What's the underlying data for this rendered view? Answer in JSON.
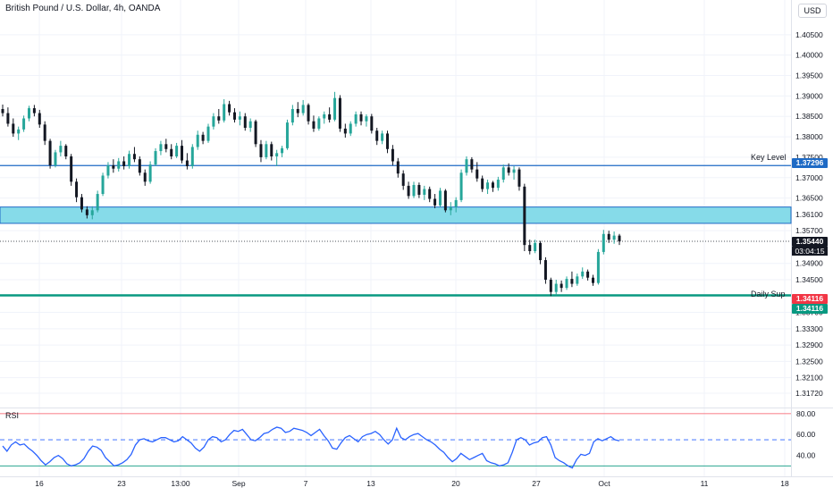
{
  "header": {
    "title": "British Pound / U.S. Dollar, 4h, OANDA",
    "currency_button": "USD"
  },
  "levels": {
    "key_level": {
      "label": "Key Level",
      "value": 1.37296,
      "tag": "1.37296",
      "color": "#1e6ac5"
    },
    "daily_sup": {
      "label": "Daily Sup",
      "value": 1.34116,
      "tag": "1.34116",
      "color": "#089981",
      "alert_color": "#f23645"
    },
    "current_price": {
      "value": 1.3544,
      "tag": "1.35440",
      "countdown": "03:04:15"
    },
    "zone": {
      "top": 1.3628,
      "bottom": 1.3588,
      "color": "#86dbe9",
      "border_color": "#1e6ac5"
    }
  },
  "rsi_panel": {
    "label": "RSI",
    "upper": 80,
    "middle": 55,
    "lower": 30,
    "line_color": "#2962ff"
  },
  "chart_data": [
    {
      "type": "candlestick",
      "title": "British Pound / U.S. Dollar, 4h, OANDA",
      "ylim": [
        1.3137,
        1.4135
      ],
      "y_ticks": [
        "1.40500",
        "1.40000",
        "1.39500",
        "1.39000",
        "1.38500",
        "1.38000",
        "1.37500",
        "1.37000",
        "1.36500",
        "1.36100",
        "1.35700",
        "1.34900",
        "1.34500",
        "1.33700",
        "1.33300",
        "1.32900",
        "1.32500",
        "1.32100",
        "1.31720"
      ],
      "x_ticks": [
        "16",
        "23",
        "13:00",
        "Sep",
        "7",
        "13",
        "20",
        "27",
        "Oct",
        "11",
        "18"
      ],
      "grid": true,
      "candles": [
        {
          "o": 1.3868,
          "h": 1.3879,
          "l": 1.385,
          "c": 1.3858
        },
        {
          "o": 1.3858,
          "h": 1.3872,
          "l": 1.3825,
          "c": 1.3832
        },
        {
          "o": 1.3832,
          "h": 1.3845,
          "l": 1.38,
          "c": 1.3808
        },
        {
          "o": 1.3808,
          "h": 1.3825,
          "l": 1.3792,
          "c": 1.3818
        },
        {
          "o": 1.3818,
          "h": 1.3852,
          "l": 1.3812,
          "c": 1.3845
        },
        {
          "o": 1.3845,
          "h": 1.3876,
          "l": 1.3838,
          "c": 1.387
        },
        {
          "o": 1.387,
          "h": 1.3878,
          "l": 1.385,
          "c": 1.3858
        },
        {
          "o": 1.3858,
          "h": 1.3866,
          "l": 1.3822,
          "c": 1.383
        },
        {
          "o": 1.383,
          "h": 1.3838,
          "l": 1.378,
          "c": 1.379
        },
        {
          "o": 1.379,
          "h": 1.3795,
          "l": 1.3722,
          "c": 1.373
        },
        {
          "o": 1.373,
          "h": 1.3768,
          "l": 1.3725,
          "c": 1.3762
        },
        {
          "o": 1.3762,
          "h": 1.379,
          "l": 1.3752,
          "c": 1.3778
        },
        {
          "o": 1.3778,
          "h": 1.3782,
          "l": 1.3745,
          "c": 1.3752
        },
        {
          "o": 1.3752,
          "h": 1.3758,
          "l": 1.368,
          "c": 1.369
        },
        {
          "o": 1.369,
          "h": 1.3698,
          "l": 1.364,
          "c": 1.3652
        },
        {
          "o": 1.3652,
          "h": 1.366,
          "l": 1.3615,
          "c": 1.3622
        },
        {
          "o": 1.3622,
          "h": 1.363,
          "l": 1.36,
          "c": 1.3608
        },
        {
          "o": 1.3608,
          "h": 1.363,
          "l": 1.3598,
          "c": 1.362
        },
        {
          "o": 1.362,
          "h": 1.3668,
          "l": 1.3615,
          "c": 1.366
        },
        {
          "o": 1.366,
          "h": 1.3712,
          "l": 1.3655,
          "c": 1.3705
        },
        {
          "o": 1.3705,
          "h": 1.3738,
          "l": 1.3698,
          "c": 1.373
        },
        {
          "o": 1.373,
          "h": 1.3745,
          "l": 1.3712,
          "c": 1.3722
        },
        {
          "o": 1.3722,
          "h": 1.3748,
          "l": 1.3715,
          "c": 1.374
        },
        {
          "o": 1.374,
          "h": 1.3752,
          "l": 1.372,
          "c": 1.3728
        },
        {
          "o": 1.3728,
          "h": 1.3766,
          "l": 1.3722,
          "c": 1.3758
        },
        {
          "o": 1.3758,
          "h": 1.3775,
          "l": 1.3738,
          "c": 1.3745
        },
        {
          "o": 1.3745,
          "h": 1.3752,
          "l": 1.3705,
          "c": 1.3712
        },
        {
          "o": 1.3712,
          "h": 1.372,
          "l": 1.368,
          "c": 1.369
        },
        {
          "o": 1.369,
          "h": 1.374,
          "l": 1.3685,
          "c": 1.3732
        },
        {
          "o": 1.3732,
          "h": 1.3772,
          "l": 1.3728,
          "c": 1.3765
        },
        {
          "o": 1.3765,
          "h": 1.379,
          "l": 1.3755,
          "c": 1.3782
        },
        {
          "o": 1.3782,
          "h": 1.3795,
          "l": 1.3762,
          "c": 1.377
        },
        {
          "o": 1.377,
          "h": 1.3782,
          "l": 1.3745,
          "c": 1.3752
        },
        {
          "o": 1.3752,
          "h": 1.3785,
          "l": 1.3748,
          "c": 1.3778
        },
        {
          "o": 1.3778,
          "h": 1.3792,
          "l": 1.3735,
          "c": 1.3742
        },
        {
          "o": 1.3742,
          "h": 1.376,
          "l": 1.372,
          "c": 1.3728
        },
        {
          "o": 1.3728,
          "h": 1.3782,
          "l": 1.3722,
          "c": 1.3775
        },
        {
          "o": 1.3775,
          "h": 1.3815,
          "l": 1.3768,
          "c": 1.3805
        },
        {
          "o": 1.3805,
          "h": 1.3812,
          "l": 1.3782,
          "c": 1.379
        },
        {
          "o": 1.379,
          "h": 1.3832,
          "l": 1.3785,
          "c": 1.3825
        },
        {
          "o": 1.3825,
          "h": 1.3858,
          "l": 1.3818,
          "c": 1.385
        },
        {
          "o": 1.385,
          "h": 1.3868,
          "l": 1.3832,
          "c": 1.384
        },
        {
          "o": 1.384,
          "h": 1.3892,
          "l": 1.3835,
          "c": 1.388
        },
        {
          "o": 1.388,
          "h": 1.3888,
          "l": 1.3852,
          "c": 1.386
        },
        {
          "o": 1.386,
          "h": 1.387,
          "l": 1.3835,
          "c": 1.3842
        },
        {
          "o": 1.3842,
          "h": 1.3862,
          "l": 1.3828,
          "c": 1.385
        },
        {
          "o": 1.385,
          "h": 1.3858,
          "l": 1.3815,
          "c": 1.3822
        },
        {
          "o": 1.3822,
          "h": 1.3845,
          "l": 1.3812,
          "c": 1.3838
        },
        {
          "o": 1.3838,
          "h": 1.3842,
          "l": 1.3775,
          "c": 1.3782
        },
        {
          "o": 1.3782,
          "h": 1.3792,
          "l": 1.3738,
          "c": 1.375
        },
        {
          "o": 1.375,
          "h": 1.379,
          "l": 1.3745,
          "c": 1.3782
        },
        {
          "o": 1.3782,
          "h": 1.3788,
          "l": 1.3742,
          "c": 1.3752
        },
        {
          "o": 1.3752,
          "h": 1.3768,
          "l": 1.3728,
          "c": 1.376
        },
        {
          "o": 1.376,
          "h": 1.3778,
          "l": 1.375,
          "c": 1.3772
        },
        {
          "o": 1.3772,
          "h": 1.3842,
          "l": 1.3768,
          "c": 1.3835
        },
        {
          "o": 1.3835,
          "h": 1.3878,
          "l": 1.3828,
          "c": 1.3868
        },
        {
          "o": 1.3868,
          "h": 1.3885,
          "l": 1.3848,
          "c": 1.3858
        },
        {
          "o": 1.3858,
          "h": 1.389,
          "l": 1.3852,
          "c": 1.3878
        },
        {
          "o": 1.3878,
          "h": 1.3882,
          "l": 1.383,
          "c": 1.3838
        },
        {
          "o": 1.3838,
          "h": 1.3852,
          "l": 1.3812,
          "c": 1.382
        },
        {
          "o": 1.382,
          "h": 1.385,
          "l": 1.3815,
          "c": 1.3845
        },
        {
          "o": 1.3845,
          "h": 1.3862,
          "l": 1.3832,
          "c": 1.3855
        },
        {
          "o": 1.3855,
          "h": 1.3872,
          "l": 1.3835,
          "c": 1.3842
        },
        {
          "o": 1.3842,
          "h": 1.391,
          "l": 1.3838,
          "c": 1.3895
        },
        {
          "o": 1.3895,
          "h": 1.3902,
          "l": 1.3812,
          "c": 1.382
        },
        {
          "o": 1.382,
          "h": 1.3832,
          "l": 1.3798,
          "c": 1.3808
        },
        {
          "o": 1.3808,
          "h": 1.3838,
          "l": 1.3802,
          "c": 1.3832
        },
        {
          "o": 1.3832,
          "h": 1.3862,
          "l": 1.3825,
          "c": 1.3855
        },
        {
          "o": 1.3855,
          "h": 1.3862,
          "l": 1.3828,
          "c": 1.3838
        },
        {
          "o": 1.3838,
          "h": 1.3855,
          "l": 1.3825,
          "c": 1.385
        },
        {
          "o": 1.385,
          "h": 1.3856,
          "l": 1.3808,
          "c": 1.3815
        },
        {
          "o": 1.3815,
          "h": 1.3822,
          "l": 1.378,
          "c": 1.379
        },
        {
          "o": 1.379,
          "h": 1.3815,
          "l": 1.3782,
          "c": 1.3808
        },
        {
          "o": 1.3808,
          "h": 1.3815,
          "l": 1.376,
          "c": 1.377
        },
        {
          "o": 1.377,
          "h": 1.378,
          "l": 1.373,
          "c": 1.374
        },
        {
          "o": 1.374,
          "h": 1.3748,
          "l": 1.37,
          "c": 1.371
        },
        {
          "o": 1.371,
          "h": 1.3718,
          "l": 1.367,
          "c": 1.368
        },
        {
          "o": 1.368,
          "h": 1.369,
          "l": 1.3648,
          "c": 1.3655
        },
        {
          "o": 1.3655,
          "h": 1.369,
          "l": 1.365,
          "c": 1.3682
        },
        {
          "o": 1.3682,
          "h": 1.3688,
          "l": 1.365,
          "c": 1.3658
        },
        {
          "o": 1.3658,
          "h": 1.368,
          "l": 1.3645,
          "c": 1.3672
        },
        {
          "o": 1.3672,
          "h": 1.3678,
          "l": 1.364,
          "c": 1.3648
        },
        {
          "o": 1.3648,
          "h": 1.366,
          "l": 1.3625,
          "c": 1.3632
        },
        {
          "o": 1.3632,
          "h": 1.3675,
          "l": 1.3628,
          "c": 1.3668
        },
        {
          "o": 1.3668,
          "h": 1.3672,
          "l": 1.3615,
          "c": 1.362
        },
        {
          "o": 1.362,
          "h": 1.364,
          "l": 1.3608,
          "c": 1.3628
        },
        {
          "o": 1.3628,
          "h": 1.3652,
          "l": 1.3615,
          "c": 1.3645
        },
        {
          "o": 1.3645,
          "h": 1.372,
          "l": 1.364,
          "c": 1.3712
        },
        {
          "o": 1.3712,
          "h": 1.3752,
          "l": 1.3705,
          "c": 1.3745
        },
        {
          "o": 1.3745,
          "h": 1.375,
          "l": 1.3712,
          "c": 1.372
        },
        {
          "o": 1.372,
          "h": 1.3738,
          "l": 1.369,
          "c": 1.3698
        },
        {
          "o": 1.3698,
          "h": 1.3705,
          "l": 1.3665,
          "c": 1.3672
        },
        {
          "o": 1.3672,
          "h": 1.3695,
          "l": 1.366,
          "c": 1.3688
        },
        {
          "o": 1.3688,
          "h": 1.3692,
          "l": 1.3665,
          "c": 1.3675
        },
        {
          "o": 1.3675,
          "h": 1.3702,
          "l": 1.3668,
          "c": 1.3695
        },
        {
          "o": 1.3695,
          "h": 1.3732,
          "l": 1.3688,
          "c": 1.3725
        },
        {
          "o": 1.3725,
          "h": 1.3735,
          "l": 1.3705,
          "c": 1.3712
        },
        {
          "o": 1.3712,
          "h": 1.3728,
          "l": 1.3695,
          "c": 1.372
        },
        {
          "o": 1.372,
          "h": 1.3725,
          "l": 1.3668,
          "c": 1.3678
        },
        {
          "o": 1.3678,
          "h": 1.3685,
          "l": 1.352,
          "c": 1.3535
        },
        {
          "o": 1.3535,
          "h": 1.3548,
          "l": 1.3512,
          "c": 1.352
        },
        {
          "o": 1.352,
          "h": 1.3548,
          "l": 1.3515,
          "c": 1.354
        },
        {
          "o": 1.354,
          "h": 1.3545,
          "l": 1.3488,
          "c": 1.3498
        },
        {
          "o": 1.3498,
          "h": 1.3505,
          "l": 1.344,
          "c": 1.345
        },
        {
          "o": 1.345,
          "h": 1.3455,
          "l": 1.341,
          "c": 1.342
        },
        {
          "o": 1.342,
          "h": 1.345,
          "l": 1.3412,
          "c": 1.344
        },
        {
          "o": 1.344,
          "h": 1.3448,
          "l": 1.342,
          "c": 1.343
        },
        {
          "o": 1.343,
          "h": 1.3458,
          "l": 1.3425,
          "c": 1.3452
        },
        {
          "o": 1.3452,
          "h": 1.347,
          "l": 1.3432,
          "c": 1.344
        },
        {
          "o": 1.344,
          "h": 1.3465,
          "l": 1.3435,
          "c": 1.3458
        },
        {
          "o": 1.3458,
          "h": 1.348,
          "l": 1.3452,
          "c": 1.347
        },
        {
          "o": 1.347,
          "h": 1.3475,
          "l": 1.3448,
          "c": 1.3455
        },
        {
          "o": 1.3455,
          "h": 1.3462,
          "l": 1.3435,
          "c": 1.3442
        },
        {
          "o": 1.3442,
          "h": 1.3525,
          "l": 1.3438,
          "c": 1.3518
        },
        {
          "o": 1.3518,
          "h": 1.3572,
          "l": 1.3512,
          "c": 1.3562
        },
        {
          "o": 1.3562,
          "h": 1.357,
          "l": 1.354,
          "c": 1.3548
        },
        {
          "o": 1.3548,
          "h": 1.3568,
          "l": 1.3538,
          "c": 1.3558
        },
        {
          "o": 1.3558,
          "h": 1.3562,
          "l": 1.3535,
          "c": 1.3544
        }
      ]
    },
    {
      "type": "line",
      "title": "RSI",
      "ylim": [
        20,
        85
      ],
      "y_ticks": [
        "80.00",
        "60.00",
        "40.00"
      ],
      "series": [
        {
          "values": [
            49,
            44,
            50,
            53,
            50,
            51,
            47,
            44,
            40,
            35,
            31,
            34,
            38,
            40,
            37,
            32,
            30,
            31,
            33,
            37,
            44,
            49,
            48,
            45,
            38,
            34,
            30,
            31,
            33,
            36,
            41,
            50,
            55,
            56,
            54,
            53,
            55,
            57,
            57,
            55,
            53,
            54,
            58,
            55,
            52,
            47,
            44,
            48,
            55,
            58,
            57,
            53,
            55,
            60,
            64,
            63,
            65,
            60,
            55,
            54,
            57,
            61,
            62,
            65,
            67,
            66,
            62,
            63,
            66,
            65,
            64,
            62,
            59,
            62,
            65,
            59,
            54,
            47,
            46,
            52,
            57,
            59,
            56,
            53,
            58,
            60,
            61,
            63,
            60,
            55,
            51,
            55,
            66,
            57,
            55,
            58,
            60,
            61,
            58,
            55,
            53,
            50,
            46,
            43,
            38,
            34,
            37,
            42,
            39,
            36,
            38,
            40,
            42,
            35,
            33,
            32,
            30,
            31,
            33,
            43,
            55,
            57,
            55,
            50,
            52,
            53,
            57,
            58,
            50,
            38,
            35,
            33,
            30,
            28,
            36,
            41,
            40,
            42,
            53,
            56,
            54,
            56,
            58,
            55,
            54
          ]
        }
      ]
    }
  ]
}
